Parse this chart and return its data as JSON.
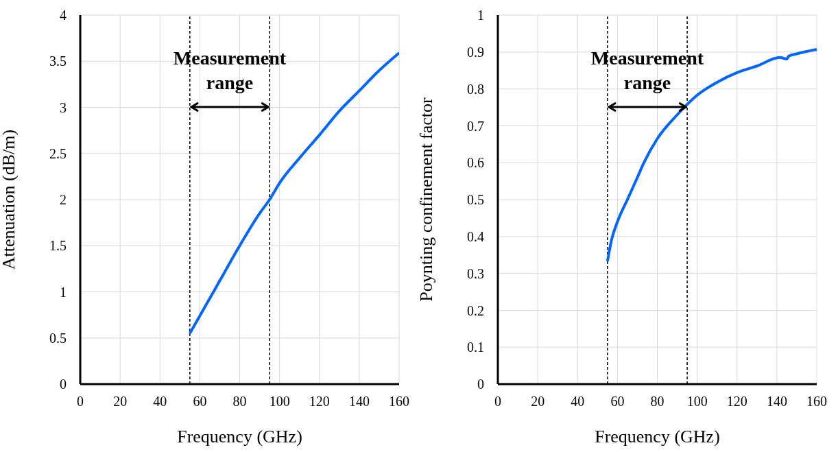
{
  "chart_data": [
    {
      "type": "line",
      "xlabel": "Frequency (GHz)",
      "ylabel": "Attenuation (dB/m)",
      "xlim": [
        0,
        160
      ],
      "xticks": [
        0,
        20,
        40,
        60,
        80,
        100,
        120,
        140,
        160
      ],
      "ylim": [
        0,
        4
      ],
      "yticks": [
        0,
        0.5,
        1,
        1.5,
        2,
        2.5,
        3,
        3.5,
        4
      ],
      "grid": true,
      "series": [
        {
          "color": "#0066ff",
          "x": [
            55,
            60,
            65,
            70,
            80,
            90,
            95,
            100,
            110,
            120,
            130,
            140,
            150,
            160
          ],
          "values": [
            0.55,
            0.74,
            0.93,
            1.12,
            1.5,
            1.85,
            2.0,
            2.18,
            2.45,
            2.7,
            2.96,
            3.18,
            3.4,
            3.59
          ]
        }
      ],
      "ref_lines": [
        {
          "axis": "x",
          "value": 55,
          "line_style": "dashed",
          "color": "#000000"
        },
        {
          "axis": "x",
          "value": 95,
          "line_style": "dashed",
          "color": "#000000"
        }
      ],
      "annotations": [
        "Measurement range"
      ]
    },
    {
      "type": "line",
      "xlabel": "Frequency (GHz)",
      "ylabel": "Poynting confinement factor",
      "xlim": [
        0,
        160
      ],
      "xticks": [
        0,
        20,
        40,
        60,
        80,
        100,
        120,
        140,
        160
      ],
      "ylim": [
        0,
        1
      ],
      "yticks": [
        0,
        0.1,
        0.2,
        0.3,
        0.4,
        0.5,
        0.6,
        0.7,
        0.8,
        0.9,
        1
      ],
      "grid": true,
      "series": [
        {
          "color": "#0066ff",
          "x": [
            55,
            57,
            60,
            65,
            70,
            73,
            80,
            90,
            95,
            100,
            110,
            120,
            130,
            141.6,
            144,
            145,
            146,
            150,
            160
          ],
          "values": [
            0.333,
            0.39,
            0.44,
            0.5,
            0.56,
            0.597,
            0.665,
            0.73,
            0.758,
            0.783,
            0.818,
            0.844,
            0.862,
            0.885,
            0.882,
            0.881,
            0.889,
            0.895,
            0.907
          ]
        }
      ],
      "ref_lines": [
        {
          "axis": "x",
          "value": 55,
          "line_style": "dashed",
          "color": "#000000"
        },
        {
          "axis": "x",
          "value": 95,
          "line_style": "dashed",
          "color": "#000000"
        }
      ],
      "annotations": [
        "Measurement range"
      ]
    }
  ]
}
